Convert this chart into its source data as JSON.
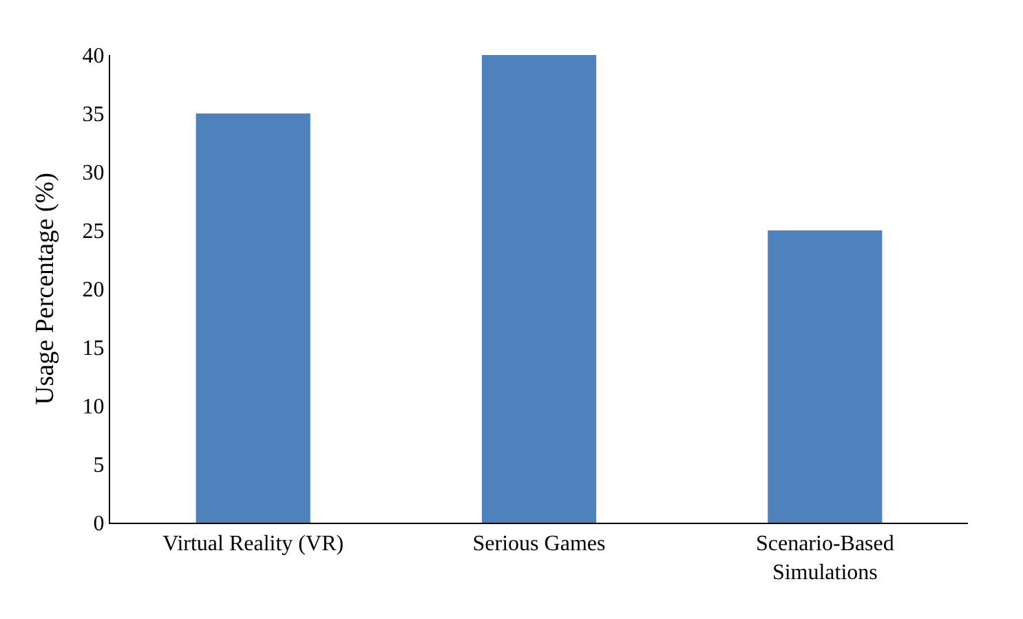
{
  "chart_data": {
    "type": "bar",
    "ylabel": "Usage Percentage (%)",
    "categories": [
      "Virtual Reality (VR)",
      "Serious Games",
      "Scenario-Based Simulations"
    ],
    "values": [
      35,
      40,
      25
    ],
    "color": "#4f81bd",
    "ylim": [
      0,
      40
    ],
    "yticks": [
      0,
      5,
      10,
      15,
      20,
      25,
      30,
      35,
      40
    ]
  }
}
